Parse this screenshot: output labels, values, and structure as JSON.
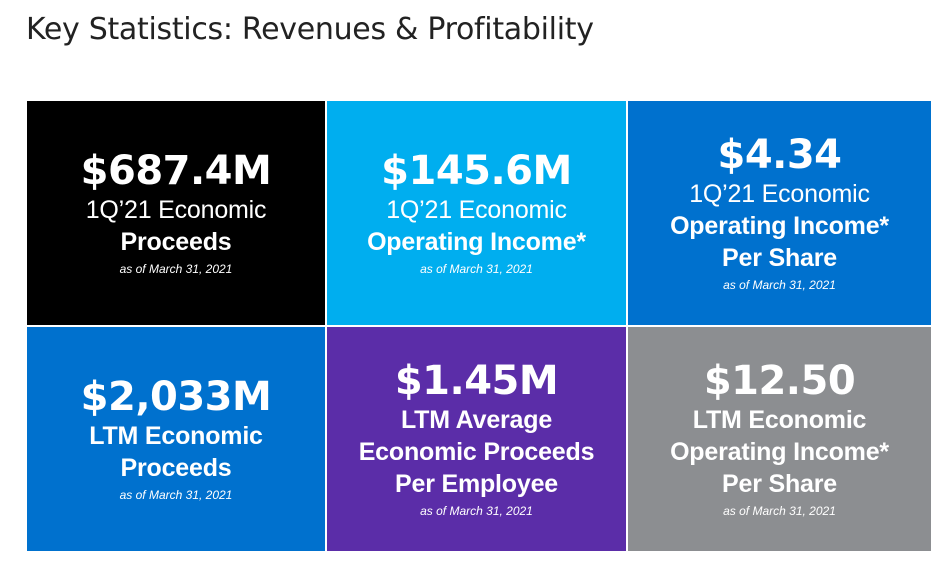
{
  "page": {
    "title": "Key Statistics: Revenues & Profitability"
  },
  "tiles": [
    {
      "value": "$687.4M",
      "line1": "1Q’21 Economic",
      "line2": "Proceeds",
      "date": "as of March 31, 2021",
      "color": "#000000"
    },
    {
      "value": "$145.6M",
      "line1": "1Q’21 Economic",
      "line2": "Operating Income*",
      "date": "as of March 31, 2021",
      "color": "#00AEEF"
    },
    {
      "value": "$4.34",
      "line1": "1Q’21 Economic",
      "line2": "Operating Income*",
      "line3": "Per Share",
      "date": "as of March 31, 2021",
      "color": "#0071CE"
    },
    {
      "value": "$2,033M",
      "line1": "LTM Economic",
      "line2": "Proceeds",
      "date": "as of March 31, 2021",
      "color": "#0071CE"
    },
    {
      "value": "$1.45M",
      "line1": "LTM Average",
      "line2": "Economic Proceeds",
      "line3": "Per Employee",
      "date": "as of March 31, 2021",
      "color": "#5B2DA8"
    },
    {
      "value": "$12.50",
      "line1": "LTM Economic",
      "line2": "Operating Income*",
      "line3": "Per Share",
      "date": "as of March 31, 2021",
      "color": "#8C8E91"
    }
  ]
}
